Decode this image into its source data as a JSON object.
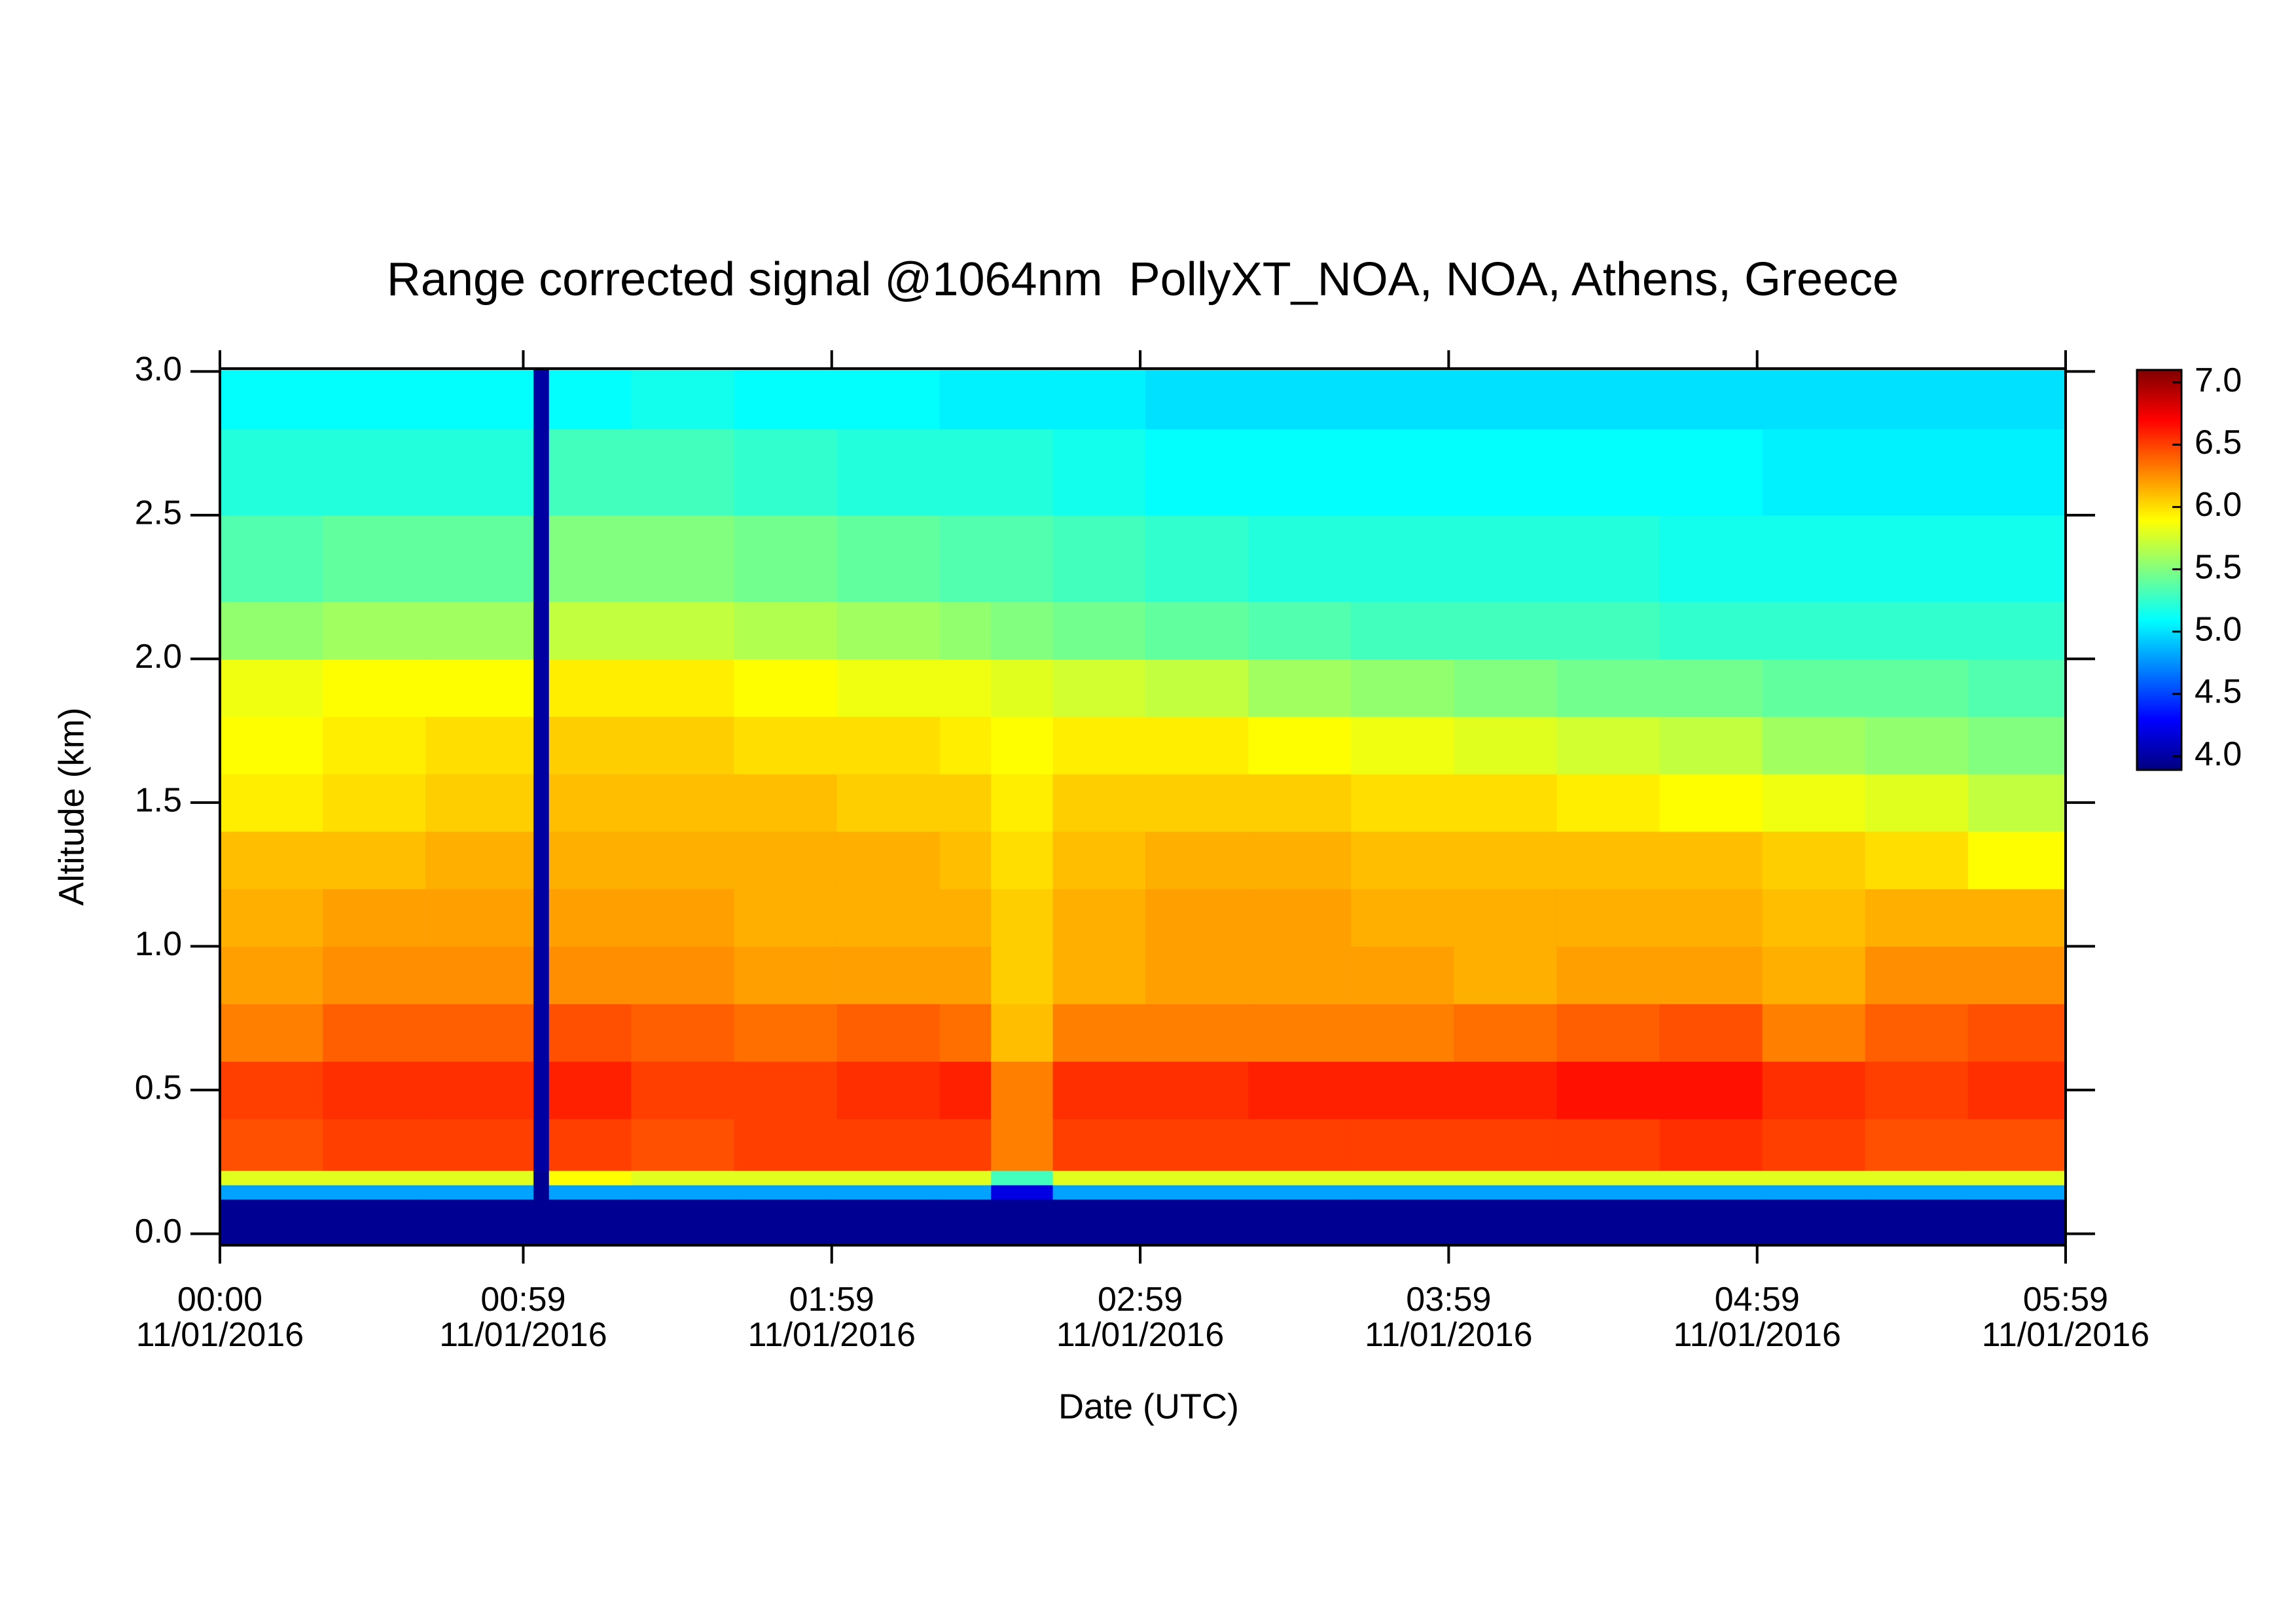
{
  "chart_data": {
    "type": "heatmap",
    "title": "Range corrected signal @1064nm  PollyXT_NOA, NOA, Athens, Greece",
    "xlabel": "Date (UTC)",
    "ylabel": "Altitude (km)",
    "xlim": [
      0,
      359
    ],
    "ylim": [
      -0.04,
      3.01
    ],
    "xticks": [
      {
        "value": 0,
        "label": "00:00\n11/01/2016"
      },
      {
        "value": 59,
        "label": "00:59\n11/01/2016"
      },
      {
        "value": 119,
        "label": "01:59\n11/01/2016"
      },
      {
        "value": 179,
        "label": "02:59\n11/01/2016"
      },
      {
        "value": 239,
        "label": "03:59\n11/01/2016"
      },
      {
        "value": 299,
        "label": "04:59\n11/01/2016"
      },
      {
        "value": 359,
        "label": "05:59\n11/01/2016"
      }
    ],
    "yticks": [
      {
        "value": 0,
        "label": "0.0"
      },
      {
        "value": 0.5,
        "label": "0.5"
      },
      {
        "value": 1,
        "label": "1.0"
      },
      {
        "value": 1.5,
        "label": "1.5"
      },
      {
        "value": 2,
        "label": "2.0"
      },
      {
        "value": 2.5,
        "label": "2.5"
      },
      {
        "value": 3,
        "label": "3.0"
      }
    ],
    "clim": [
      3.89,
      7.1
    ],
    "cticks": [
      {
        "value": 4,
        "label": "4.0"
      },
      {
        "value": 4.5,
        "label": "4.5"
      },
      {
        "value": 5,
        "label": "5.0"
      },
      {
        "value": 5.5,
        "label": "5.5"
      },
      {
        "value": 6,
        "label": "6.0"
      },
      {
        "value": 6.5,
        "label": "6.5"
      },
      {
        "value": 7,
        "label": "7.0"
      }
    ],
    "colormap": [
      "#00007f",
      "#0000ff",
      "#0080ff",
      "#00ffff",
      "#80ff80",
      "#ffff00",
      "#ff8000",
      "#ff0000",
      "#7f0000"
    ],
    "x_edges": [
      0,
      20,
      40,
      61,
      64,
      80,
      100,
      120,
      140,
      150,
      162,
      180,
      200,
      220,
      240,
      260,
      280,
      300,
      320,
      340,
      359
    ],
    "y_edges": [
      -0.04,
      0.12,
      0.17,
      0.22,
      0.4,
      0.6,
      0.8,
      1.0,
      1.2,
      1.4,
      1.6,
      1.8,
      2.0,
      2.2,
      2.5,
      2.8,
      3.01
    ],
    "z": [
      [
        3.95,
        3.95,
        3.95,
        3.95,
        3.95,
        3.95,
        3.95,
        3.95,
        3.95,
        3.95,
        3.95,
        3.95,
        3.95,
        3.95,
        3.95,
        3.95,
        3.95,
        3.95,
        3.95,
        3.95
      ],
      [
        4.8,
        4.8,
        4.8,
        3.95,
        4.8,
        4.8,
        4.8,
        4.8,
        4.8,
        4.2,
        4.8,
        4.8,
        4.8,
        4.8,
        4.8,
        4.8,
        4.8,
        4.8,
        4.8,
        4.8
      ],
      [
        5.8,
        5.8,
        5.8,
        3.95,
        5.9,
        5.8,
        5.8,
        5.8,
        5.8,
        5.3,
        5.8,
        5.8,
        5.8,
        5.8,
        5.8,
        5.8,
        5.8,
        5.8,
        5.8,
        5.8
      ],
      [
        6.45,
        6.5,
        6.5,
        4.0,
        6.5,
        6.45,
        6.5,
        6.5,
        6.5,
        6.3,
        6.5,
        6.5,
        6.5,
        6.5,
        6.5,
        6.5,
        6.55,
        6.5,
        6.45,
        6.45
      ],
      [
        6.5,
        6.55,
        6.55,
        4.0,
        6.6,
        6.5,
        6.5,
        6.55,
        6.6,
        6.3,
        6.55,
        6.55,
        6.6,
        6.6,
        6.6,
        6.65,
        6.65,
        6.55,
        6.5,
        6.55
      ],
      [
        6.3,
        6.4,
        6.4,
        4.0,
        6.45,
        6.4,
        6.35,
        6.4,
        6.35,
        6.1,
        6.3,
        6.3,
        6.3,
        6.3,
        6.35,
        6.4,
        6.45,
        6.3,
        6.4,
        6.45
      ],
      [
        6.2,
        6.25,
        6.25,
        4.0,
        6.25,
        6.25,
        6.2,
        6.2,
        6.2,
        6.05,
        6.15,
        6.2,
        6.2,
        6.2,
        6.15,
        6.2,
        6.2,
        6.15,
        6.25,
        6.25
      ],
      [
        6.15,
        6.2,
        6.2,
        4.0,
        6.2,
        6.2,
        6.15,
        6.15,
        6.15,
        6.05,
        6.15,
        6.2,
        6.2,
        6.15,
        6.15,
        6.15,
        6.15,
        6.1,
        6.15,
        6.15
      ],
      [
        6.1,
        6.1,
        6.15,
        4.0,
        6.15,
        6.15,
        6.15,
        6.15,
        6.1,
        6.0,
        6.1,
        6.15,
        6.15,
        6.1,
        6.1,
        6.1,
        6.1,
        6.05,
        6.0,
        5.9
      ],
      [
        5.95,
        6.0,
        6.05,
        4.0,
        6.1,
        6.1,
        6.1,
        6.05,
        6.05,
        5.95,
        6.05,
        6.05,
        6.05,
        6.0,
        6.0,
        5.95,
        5.9,
        5.85,
        5.8,
        5.7
      ],
      [
        5.9,
        5.95,
        6.0,
        4.0,
        6.05,
        6.05,
        6.0,
        6.0,
        5.95,
        5.9,
        5.95,
        5.95,
        5.9,
        5.85,
        5.8,
        5.75,
        5.7,
        5.6,
        5.55,
        5.5
      ],
      [
        5.85,
        5.9,
        5.9,
        4.0,
        5.95,
        5.95,
        5.9,
        5.85,
        5.85,
        5.8,
        5.75,
        5.7,
        5.6,
        5.55,
        5.5,
        5.45,
        5.45,
        5.4,
        5.4,
        5.35
      ],
      [
        5.55,
        5.6,
        5.6,
        4.0,
        5.7,
        5.7,
        5.65,
        5.6,
        5.55,
        5.5,
        5.45,
        5.4,
        5.35,
        5.3,
        5.3,
        5.3,
        5.25,
        5.25,
        5.25,
        5.25
      ],
      [
        5.35,
        5.4,
        5.4,
        4.0,
        5.5,
        5.5,
        5.45,
        5.4,
        5.35,
        5.35,
        5.3,
        5.25,
        5.2,
        5.2,
        5.2,
        5.2,
        5.15,
        5.15,
        5.15,
        5.15
      ],
      [
        5.2,
        5.2,
        5.2,
        4.0,
        5.3,
        5.3,
        5.25,
        5.2,
        5.2,
        5.2,
        5.15,
        5.1,
        5.1,
        5.1,
        5.1,
        5.1,
        5.1,
        5.05,
        5.05,
        5.05
      ],
      [
        5.1,
        5.1,
        5.1,
        4.0,
        5.1,
        5.15,
        5.1,
        5.1,
        5.05,
        5.05,
        5.05,
        5.0,
        5.0,
        5.0,
        5.0,
        5.0,
        5.0,
        5.0,
        5.0,
        5.0
      ]
    ]
  }
}
